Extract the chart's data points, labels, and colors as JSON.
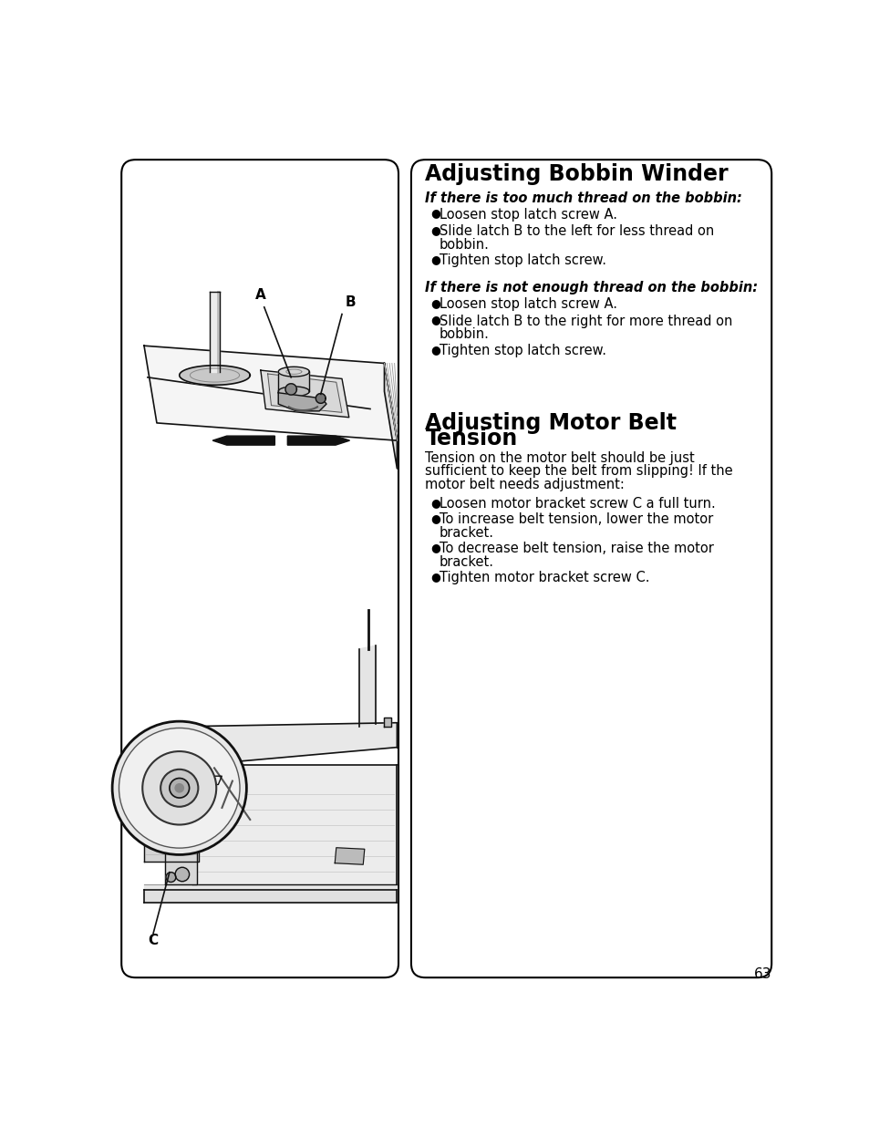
{
  "page_bg": "#ffffff",
  "border_color": "#000000",
  "text_color": "#000000",
  "page_number": "63",
  "title1": "Adjusting Bobbin Winder",
  "sub1a": "If there is too much thread on the bobbin:",
  "bullets1a_line1": "Loosen stop latch screw A.",
  "bullets1a_line2a": "Slide latch B to the left for less thread on",
  "bullets1a_line2b": "bobbin.",
  "bullets1a_line3": "Tighten stop latch screw.",
  "sub1b": "If there is not enough thread on the bobbin:",
  "bullets1b_line1": "Loosen stop latch screw A.",
  "bullets1b_line2a": "Slide latch B to the right for more thread on",
  "bullets1b_line2b": "bobbin.",
  "bullets1b_line3": "Tighten stop latch screw.",
  "title2a": "Adjusting Motor Belt",
  "title2b": "Tension",
  "intro2_line1": "Tension on the motor belt should be just",
  "intro2_line2": "sufficient to keep the belt from slipping! If the",
  "intro2_line3": "motor belt needs adjustment:",
  "b2_line1": "Loosen motor bracket screw C a full turn.",
  "b2_line2a": "To increase belt tension, lower the motor",
  "b2_line2b": "bracket.",
  "b2_line3a": "To decrease belt tension, raise the motor",
  "b2_line3b": "bracket.",
  "b2_line4": "Tighten motor bracket screw C.",
  "fig_width": 9.54,
  "fig_height": 12.35,
  "dpi": 100
}
